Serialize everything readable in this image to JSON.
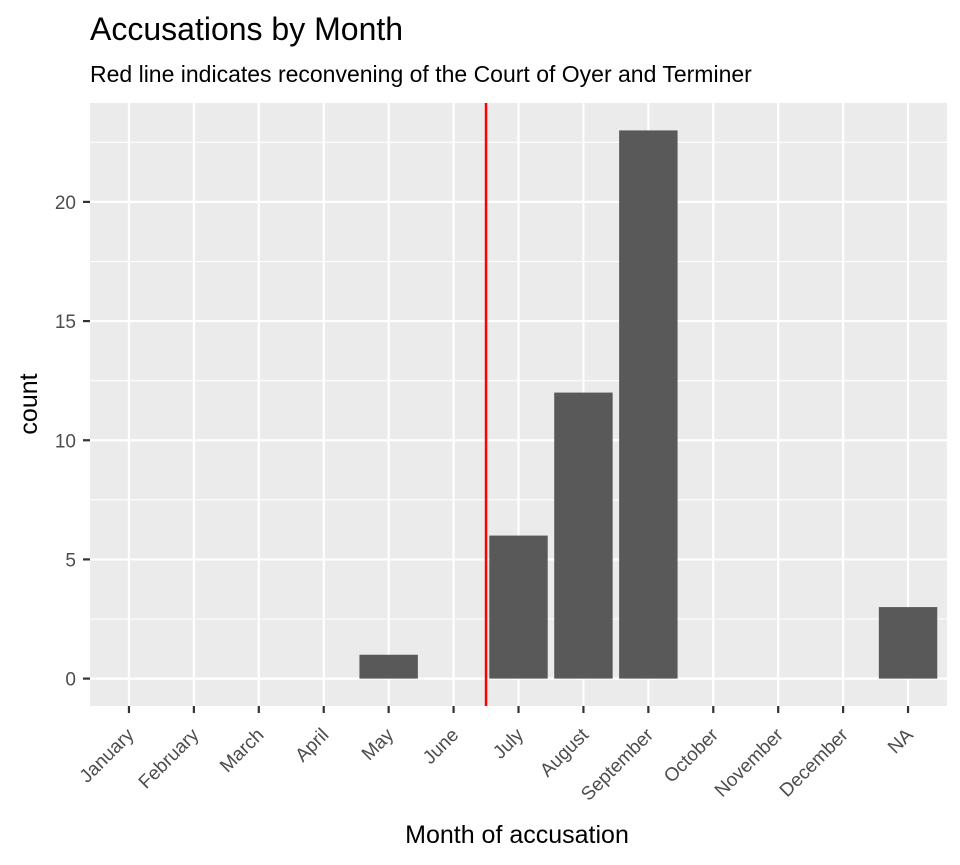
{
  "chart_data": {
    "type": "bar",
    "title": "Accusations by Month",
    "subtitle": "Red line indicates reconvening of the Court of Oyer and Terminer",
    "xlabel": "Month of accusation",
    "ylabel": "count",
    "categories": [
      "January",
      "February",
      "March",
      "April",
      "May",
      "June",
      "July",
      "August",
      "September",
      "October",
      "November",
      "December",
      "NA"
    ],
    "values": [
      0,
      0,
      0,
      0,
      1,
      0,
      6,
      12,
      23,
      0,
      0,
      0,
      3
    ],
    "ylim": [
      -1.15,
      24.15
    ],
    "yticks": [
      0,
      5,
      10,
      15,
      20
    ],
    "grid": true,
    "reference_line": {
      "orientation": "vertical",
      "between": [
        "June",
        "July"
      ]
    },
    "colors": {
      "panel_background": "#ebebeb",
      "gridline": "#ffffff",
      "bar_fill": "#595959",
      "reference_line": "#ff0000",
      "tick_label": "#4d4d4d",
      "tick_mark": "#333333"
    }
  }
}
